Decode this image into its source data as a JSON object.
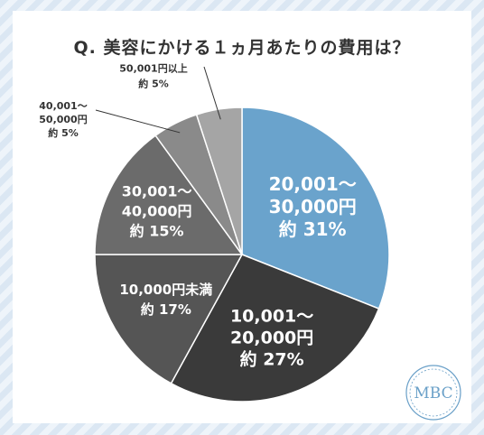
{
  "title": "Q. 美容にかける１ヵ月あたりの費用は？",
  "logo_text": "MBC",
  "colors": {
    "highlight": "#6aa3cc",
    "slice_27": "#3a3a3a",
    "slice_17": "#555555",
    "slice_15": "#6b6b6b",
    "slice_5a": "#8a8a8a",
    "slice_5b": "#a5a5a5"
  },
  "chart_data": {
    "type": "pie",
    "unit": "%",
    "slices": [
      {
        "label_lines": [
          "20,001～",
          "30,000円",
          "約 31%"
        ],
        "value": 31,
        "color": "#6aa3cc",
        "text_color": "#ffffff"
      },
      {
        "label_lines": [
          "10,001～",
          "20,000円",
          "約 27%"
        ],
        "value": 27,
        "color": "#3a3a3a",
        "text_color": "#ffffff"
      },
      {
        "label_lines": [
          "10,000円未満",
          "約 17%"
        ],
        "value": 17,
        "color": "#555555",
        "text_color": "#ffffff"
      },
      {
        "label_lines": [
          "30,001～",
          "40,000円",
          "約 15%"
        ],
        "value": 15,
        "color": "#6b6b6b",
        "text_color": "#ffffff"
      },
      {
        "label_lines": [
          "40,001～",
          "50,000円",
          "約 5%"
        ],
        "value": 5,
        "color": "#8a8a8a",
        "text_color": "#333333"
      },
      {
        "label_lines": [
          "50,001円以上",
          "約 5%"
        ],
        "value": 5,
        "color": "#a5a5a5",
        "text_color": "#333333"
      }
    ]
  }
}
